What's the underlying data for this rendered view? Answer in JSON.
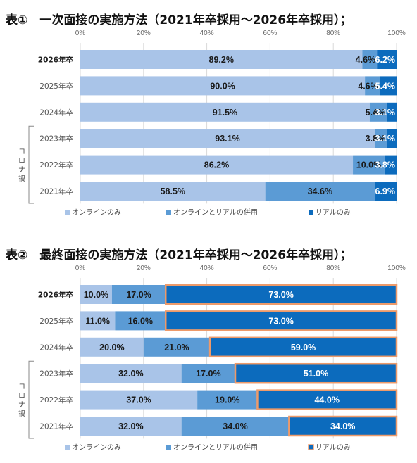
{
  "colors": {
    "online": "#a9c4e8",
    "combined": "#5b9bd5",
    "real": "#0c6bbd",
    "highlight": "#ed9a6a"
  },
  "chart_data": [
    {
      "type": "bar",
      "orientation": "horizontal",
      "stacked": true,
      "title": "表①　一次面接の実施方法（2021年卒採用～2026年卒採用）；",
      "xlim": [
        0,
        100
      ],
      "xticks": [
        "0%",
        "20%",
        "40%",
        "60%",
        "80%",
        "100%"
      ],
      "categories": [
        "2026年卒",
        "2025年卒",
        "2024年卒",
        "2023年卒",
        "2022年卒",
        "2021年卒"
      ],
      "bold_category": "2026年卒",
      "side_label": "コロナ禍",
      "series": [
        {
          "name": "オンラインのみ",
          "values": [
            89.2,
            90.0,
            91.5,
            93.1,
            86.2,
            58.5
          ],
          "labels": [
            "89.2%",
            "90.0%",
            "91.5%",
            "93.1%",
            "86.2%",
            "58.5%"
          ]
        },
        {
          "name": "オンラインとリアルの併用",
          "values": [
            4.6,
            4.6,
            5.4,
            3.8,
            10.0,
            34.6
          ],
          "labels": [
            "4.6%",
            "4.6%",
            "5.4%",
            "3.8%",
            "10.0%",
            "34.6%"
          ]
        },
        {
          "name": "リアルのみ",
          "values": [
            6.2,
            5.4,
            3.1,
            3.1,
            3.8,
            6.9
          ],
          "labels": [
            "6.2%",
            "5.4%",
            "3.1%",
            "3.1%",
            "3.8%",
            "6.9%"
          ]
        }
      ],
      "legend_position": "bottom-left"
    },
    {
      "type": "bar",
      "orientation": "horizontal",
      "stacked": true,
      "title": "表②　最終面接の実施方法（2021年卒採用～2026年卒採用）；",
      "xlim": [
        0,
        100
      ],
      "xticks": [
        "0%",
        "20%",
        "40%",
        "60%",
        "80%",
        "100%"
      ],
      "categories": [
        "2026年卒",
        "2025年卒",
        "2024年卒",
        "2023年卒",
        "2022年卒",
        "2021年卒"
      ],
      "bold_category": "2026年卒",
      "side_label": "コロナ禍",
      "series": [
        {
          "name": "オンラインのみ",
          "values": [
            10.0,
            11.0,
            20.0,
            32.0,
            37.0,
            32.0
          ],
          "labels": [
            "10.0%",
            "11.0%",
            "20.0%",
            "32.0%",
            "37.0%",
            "32.0%"
          ]
        },
        {
          "name": "オンラインとリアルの併用",
          "values": [
            17.0,
            16.0,
            21.0,
            17.0,
            19.0,
            34.0
          ],
          "labels": [
            "17.0%",
            "16.0%",
            "21.0%",
            "17.0%",
            "19.0%",
            "34.0%"
          ]
        },
        {
          "name": "リアルのみ",
          "values": [
            73.0,
            73.0,
            59.0,
            51.0,
            44.0,
            34.0
          ],
          "labels": [
            "73.0%",
            "73.0%",
            "59.0%",
            "51.0%",
            "44.0%",
            "34.0%"
          ],
          "highlighted": true
        }
      ],
      "legend_position": "bottom-left"
    }
  ]
}
